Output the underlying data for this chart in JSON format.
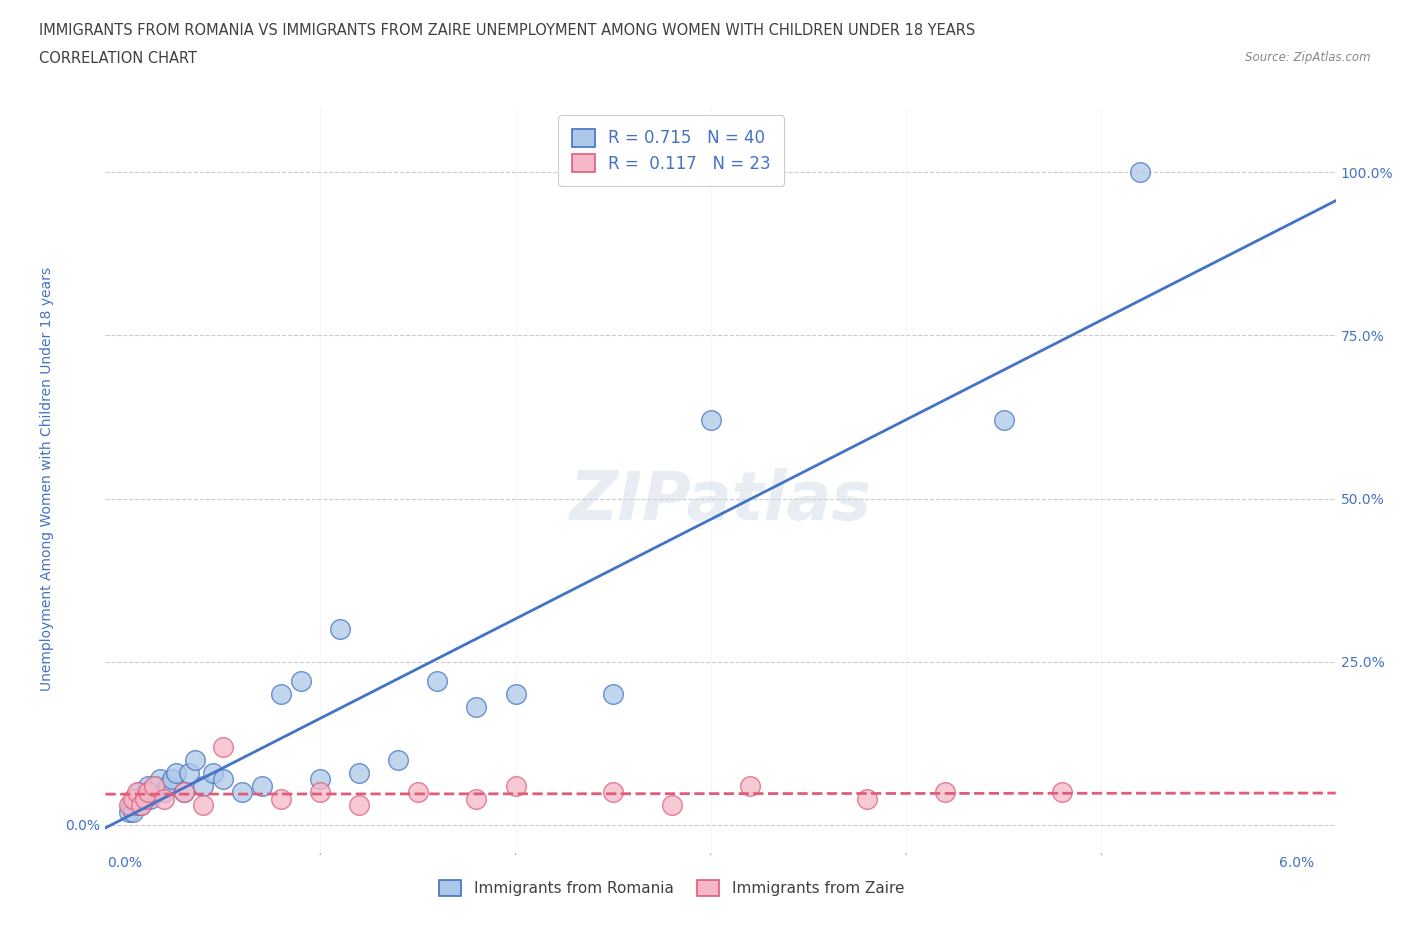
{
  "title_line1": "IMMIGRANTS FROM ROMANIA VS IMMIGRANTS FROM ZAIRE UNEMPLOYMENT AMONG WOMEN WITH CHILDREN UNDER 18 YEARS",
  "title_line2": "CORRELATION CHART",
  "source_text": "Source: ZipAtlas.com",
  "watermark": "ZIPatlas",
  "ylabel": "Unemployment Among Women with Children Under 18 years",
  "xlim": [
    -0.001,
    0.062
  ],
  "ylim": [
    -0.04,
    1.1
  ],
  "romania_R": 0.715,
  "romania_N": 40,
  "zaire_R": 0.117,
  "zaire_N": 23,
  "romania_color": "#adc8e8",
  "zaire_color": "#f5b8c8",
  "romania_line_color": "#4472C4",
  "zaire_line_color": "#E05C7A",
  "background_color": "#ffffff",
  "grid_color": "#cccccc",
  "title_color": "#404040",
  "axis_color": "#4472C4",
  "romania_x": [
    0.0002,
    0.0003,
    0.0004,
    0.0005,
    0.0006,
    0.0007,
    0.0008,
    0.0009,
    0.001,
    0.0011,
    0.0012,
    0.0013,
    0.0014,
    0.0016,
    0.0018,
    0.002,
    0.0022,
    0.0024,
    0.0026,
    0.003,
    0.0033,
    0.0036,
    0.004,
    0.0045,
    0.005,
    0.006,
    0.007,
    0.008,
    0.009,
    0.01,
    0.011,
    0.012,
    0.014,
    0.016,
    0.018,
    0.02,
    0.025,
    0.03,
    0.045,
    0.052
  ],
  "romania_y": [
    0.02,
    0.03,
    0.02,
    0.04,
    0.03,
    0.05,
    0.03,
    0.04,
    0.04,
    0.05,
    0.06,
    0.04,
    0.05,
    0.06,
    0.07,
    0.05,
    0.06,
    0.07,
    0.08,
    0.05,
    0.08,
    0.1,
    0.06,
    0.08,
    0.07,
    0.05,
    0.06,
    0.2,
    0.22,
    0.07,
    0.3,
    0.08,
    0.1,
    0.22,
    0.18,
    0.2,
    0.2,
    0.62,
    0.62,
    1.0
  ],
  "zaire_x": [
    0.0002,
    0.0004,
    0.0006,
    0.0008,
    0.001,
    0.0012,
    0.0015,
    0.002,
    0.003,
    0.004,
    0.005,
    0.008,
    0.01,
    0.012,
    0.015,
    0.018,
    0.02,
    0.025,
    0.028,
    0.032,
    0.038,
    0.042,
    0.048
  ],
  "zaire_y": [
    0.03,
    0.04,
    0.05,
    0.03,
    0.04,
    0.05,
    0.06,
    0.04,
    0.05,
    0.03,
    0.12,
    0.04,
    0.05,
    0.03,
    0.05,
    0.04,
    0.06,
    0.05,
    0.03,
    0.06,
    0.04,
    0.05,
    0.05
  ]
}
